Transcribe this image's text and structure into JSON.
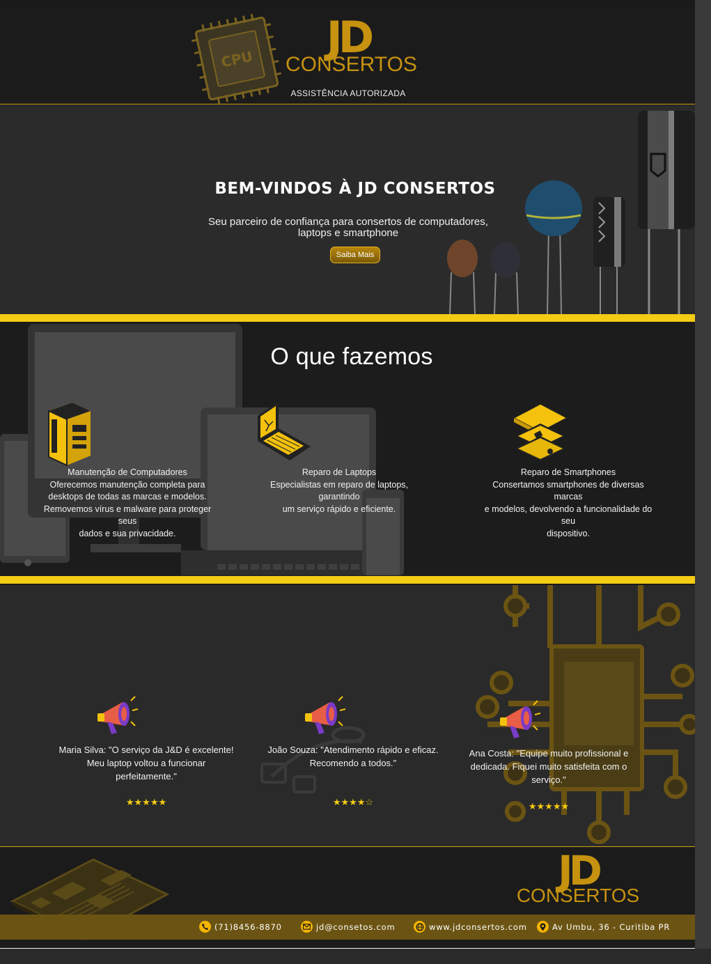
{
  "header": {
    "logo_mark": "JD",
    "logo_name": "CONSERTOS",
    "cpu_label": "CPU",
    "tagline": "ASSISTÊNCIA AUTORIZADA"
  },
  "hero": {
    "title": "BEM-VINDOS À JD CONSERTOS",
    "subtitle_line1": "Seu parceiro de confiança para consertos de computadores,",
    "subtitle_line2": "laptops e smartphone",
    "button_label": "Saiba Mais"
  },
  "services": {
    "title": "O que fazemos",
    "items": [
      {
        "name": "Manutenção de Computadores",
        "lines": [
          "Oferecemos manutenção completa para",
          "desktops de todas as marcas e modelos.",
          "Removemos vírus e malware para proteger seus",
          "dados e sua privacidade."
        ]
      },
      {
        "name": "Reparo de Laptops",
        "lines": [
          "Especialistas em reparo de laptops, garantindo",
          "um serviço rápido e eficiente."
        ]
      },
      {
        "name": "Reparo de Smartphones",
        "lines": [
          "Consertamos smartphones de diversas marcas",
          "e modelos, devolvendo a funcionalidade do seu",
          "dispositivo."
        ]
      }
    ]
  },
  "testimonials": {
    "items": [
      {
        "lines": [
          "Maria Silva: \"O serviço da J&D é excelente!",
          "Meu laptop voltou a funcionar",
          "perfeitamente.\""
        ],
        "stars": "★★★★★",
        "rating": 5
      },
      {
        "lines": [
          "João Souza: \"Atendimento rápido e eficaz.",
          "Recomendo a todos.\""
        ],
        "stars": "★★★★☆",
        "rating": 4
      },
      {
        "lines": [
          "Ana Costa: \"Equipe muito profissional e",
          "dedicada. Fiquei muito satisfeita com o",
          "serviço.\""
        ],
        "stars": "★★★★★",
        "rating": 5
      }
    ]
  },
  "footer": {
    "logo_mark": "JD",
    "logo_name": "CONSERTOS",
    "phone": "(71)8456-8870",
    "email": "jd@consetos.com",
    "website": "www.jdconsertos.com",
    "address": "Av Umbu, 36 - Curitiba PR"
  },
  "colors": {
    "accent": "#f4cc14",
    "gold": "#c6920f",
    "dark": "#1b1b1b",
    "panel": "#2b2b2b"
  }
}
